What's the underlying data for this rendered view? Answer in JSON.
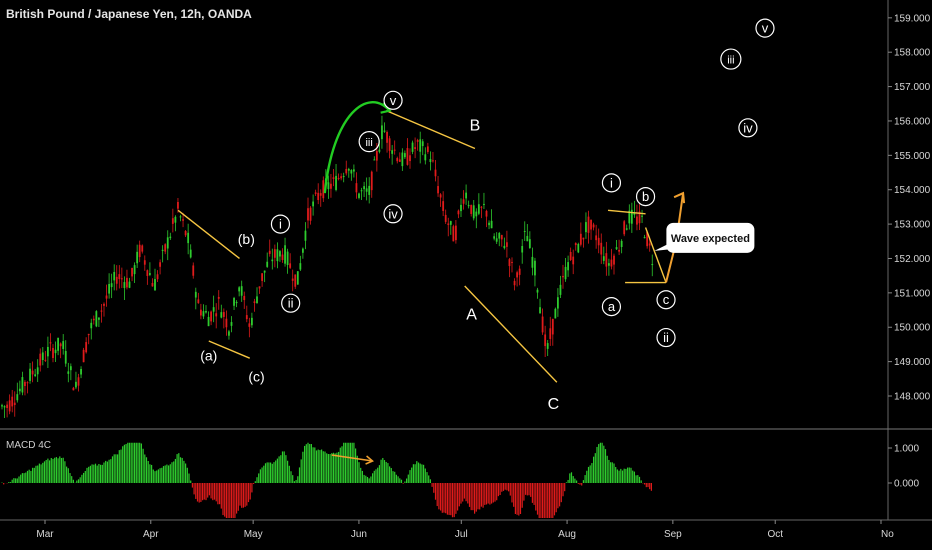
{
  "header": {
    "title": "British Pound / Japanese Yen, 12h, OANDA"
  },
  "macd": {
    "label": "MACD 4C",
    "ticks": [
      "1.000",
      "0.000"
    ]
  },
  "colors": {
    "background": "#000000",
    "bull": "#2ecc2e",
    "bear": "#e01b1b",
    "trendline": "#f5c542",
    "arrow": "#f0a030",
    "impulse_arc": "#22cc22",
    "macd_arrow": "#f0a030"
  },
  "chart_data": {
    "type": "candlestick",
    "symbol": "GBP/JPY",
    "timeframe": "12h",
    "source": "OANDA",
    "ylim": [
      147.5,
      159.3
    ],
    "y_ticks": [
      "148.000",
      "149.000",
      "150.000",
      "151.000",
      "152.000",
      "153.000",
      "154.000",
      "155.000",
      "156.000",
      "157.000",
      "158.000",
      "159.000"
    ],
    "x_ticks": [
      "Mar",
      "Apr",
      "May",
      "Jun",
      "Jul",
      "Aug",
      "Sep",
      "Oct",
      "No"
    ],
    "path": [
      [
        "2019-02-18",
        147.7
      ],
      [
        "2019-02-24",
        148.5
      ],
      [
        "2019-03-02",
        149.3
      ],
      [
        "2019-03-06",
        149.5
      ],
      [
        "2019-03-10",
        148.2
      ],
      [
        "2019-03-14",
        149.9
      ],
      [
        "2019-03-18",
        150.6
      ],
      [
        "2019-03-22",
        151.5
      ],
      [
        "2019-03-26",
        151.3
      ],
      [
        "2019-03-29",
        152.3
      ],
      [
        "2019-04-02",
        151.2
      ],
      [
        "2019-04-06",
        152.5
      ],
      [
        "2019-04-09",
        153.4
      ],
      [
        "2019-04-12",
        152.5
      ],
      [
        "2019-04-15",
        150.6
      ],
      [
        "2019-04-18",
        150.3
      ],
      [
        "2019-04-21",
        150.7
      ],
      [
        "2019-04-24",
        150.0
      ],
      [
        "2019-04-27",
        151.3
      ],
      [
        "2019-04-30",
        150.0
      ],
      [
        "2019-05-03",
        151.3
      ],
      [
        "2019-05-06",
        152.0
      ],
      [
        "2019-05-10",
        152.2
      ],
      [
        "2019-05-14",
        151.3
      ],
      [
        "2019-05-17",
        153.2
      ],
      [
        "2019-05-21",
        154.0
      ],
      [
        "2019-05-25",
        154.2
      ],
      [
        "2019-05-29",
        154.8
      ],
      [
        "2019-06-01",
        153.9
      ],
      [
        "2019-06-04",
        153.9
      ],
      [
        "2019-06-08",
        155.8
      ],
      [
        "2019-06-11",
        155.2
      ],
      [
        "2019-06-14",
        154.8
      ],
      [
        "2019-06-18",
        155.3
      ],
      [
        "2019-06-22",
        155.0
      ],
      [
        "2019-06-26",
        153.3
      ],
      [
        "2019-06-29",
        152.6
      ],
      [
        "2019-07-02",
        154.0
      ],
      [
        "2019-07-05",
        153.2
      ],
      [
        "2019-07-08",
        153.5
      ],
      [
        "2019-07-11",
        152.5
      ],
      [
        "2019-07-14",
        152.5
      ],
      [
        "2019-07-17",
        151.2
      ],
      [
        "2019-07-20",
        152.8
      ],
      [
        "2019-07-23",
        151.5
      ],
      [
        "2019-07-26",
        149.2
      ],
      [
        "2019-07-29",
        150.6
      ],
      [
        "2019-08-01",
        151.8
      ],
      [
        "2019-08-04",
        152.3
      ],
      [
        "2019-08-07",
        153.0
      ],
      [
        "2019-08-10",
        152.6
      ],
      [
        "2019-08-13",
        151.8
      ],
      [
        "2019-08-16",
        152.3
      ],
      [
        "2019-08-19",
        153.2
      ],
      [
        "2019-08-23",
        153.1
      ],
      [
        "2019-08-26",
        152.0
      ]
    ],
    "wave_labels": [
      {
        "text": "(a)",
        "date": "2019-04-18",
        "price": 149.2
      },
      {
        "text": "(b)",
        "date": "2019-04-29",
        "price": 152.6
      },
      {
        "text": "(c)",
        "date": "2019-05-02",
        "price": 148.6
      },
      {
        "text": "i",
        "date": "2019-05-09",
        "price": 153.0,
        "circled": true
      },
      {
        "text": "ii",
        "date": "2019-05-12",
        "price": 150.7,
        "circled": true
      },
      {
        "text": "iii",
        "date": "2019-06-04",
        "price": 155.4,
        "circled": true
      },
      {
        "text": "iv",
        "date": "2019-06-11",
        "price": 153.3,
        "circled": true
      },
      {
        "text": "v",
        "date": "2019-06-11",
        "price": 156.6,
        "circled": true
      },
      {
        "text": "B",
        "date": "2019-07-05",
        "price": 155.9
      },
      {
        "text": "A",
        "date": "2019-07-04",
        "price": 150.4
      },
      {
        "text": "C",
        "date": "2019-07-28",
        "price": 147.8
      },
      {
        "text": "i",
        "date": "2019-08-14",
        "price": 154.2,
        "circled": true
      },
      {
        "text": "b",
        "date": "2019-08-24",
        "price": 153.8,
        "circled": true
      },
      {
        "text": "a",
        "date": "2019-08-14",
        "price": 150.6,
        "circled": true
      },
      {
        "text": "c",
        "date": "2019-08-30",
        "price": 150.8,
        "circled": true
      },
      {
        "text": "ii",
        "date": "2019-08-30",
        "price": 149.7,
        "circled": true
      },
      {
        "text": "iii",
        "date": "2019-09-18",
        "price": 157.8,
        "circled": true
      },
      {
        "text": "iv",
        "date": "2019-09-23",
        "price": 155.8,
        "circled": true
      },
      {
        "text": "v",
        "date": "2019-09-28",
        "price": 158.7,
        "circled": true
      }
    ],
    "trendlines": [
      {
        "from": [
          "2019-04-09",
          153.4
        ],
        "to": [
          "2019-04-27",
          152.0
        ]
      },
      {
        "from": [
          "2019-04-18",
          149.6
        ],
        "to": [
          "2019-04-30",
          149.1
        ]
      },
      {
        "from": [
          "2019-06-09",
          156.3
        ],
        "to": [
          "2019-07-05",
          155.2
        ]
      },
      {
        "from": [
          "2019-07-02",
          151.2
        ],
        "to": [
          "2019-07-29",
          148.4
        ]
      },
      {
        "from": [
          "2019-08-13",
          153.4
        ],
        "to": [
          "2019-08-24",
          153.3
        ]
      },
      {
        "from": [
          "2019-08-18",
          151.3
        ],
        "to": [
          "2019-08-30",
          151.3
        ]
      },
      {
        "from": [
          "2019-08-24",
          152.9
        ],
        "to": [
          "2019-08-30",
          151.3
        ]
      }
    ],
    "projection": [
      [
        "2019-08-30",
        151.3
      ],
      [
        "2019-09-02",
        152.5
      ],
      [
        "2019-09-04",
        153.9
      ]
    ],
    "annotation": {
      "text": "Wave expected",
      "date": "2019-09-12",
      "price": 152.6
    }
  }
}
